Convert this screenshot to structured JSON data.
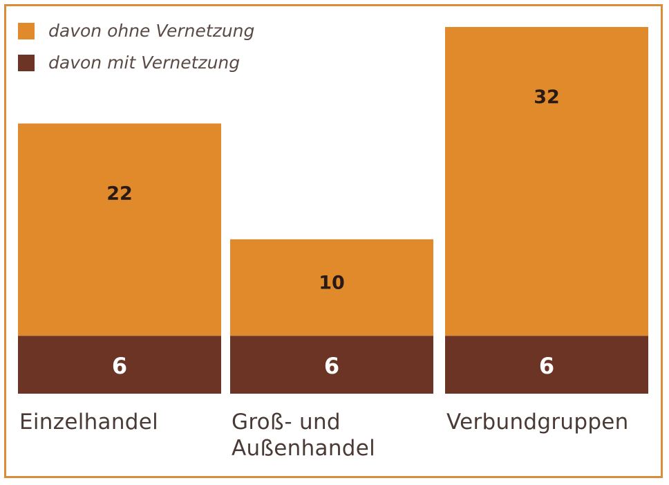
{
  "chart_data": {
    "type": "bar",
    "stacked": true,
    "categories": [
      "Einzelhandel",
      "Groß- und Außenhandel",
      "Verbundgruppen"
    ],
    "category_lines": [
      [
        "Einzelhandel"
      ],
      [
        "Groß- und",
        "Außenhandel"
      ],
      [
        "Verbundgruppen"
      ]
    ],
    "series": [
      {
        "name": "davon mit Vernetzung",
        "values": [
          6,
          6,
          6
        ],
        "color": "#6b3424"
      },
      {
        "name": "davon ohne Vernetzung",
        "values": [
          22,
          10,
          32
        ],
        "color": "#e08a2c"
      }
    ],
    "ylim": [
      0,
      38
    ],
    "grid": false,
    "legend": "top-left",
    "legend_order": [
      "davon ohne Vernetzung",
      "davon mit Vernetzung"
    ]
  }
}
